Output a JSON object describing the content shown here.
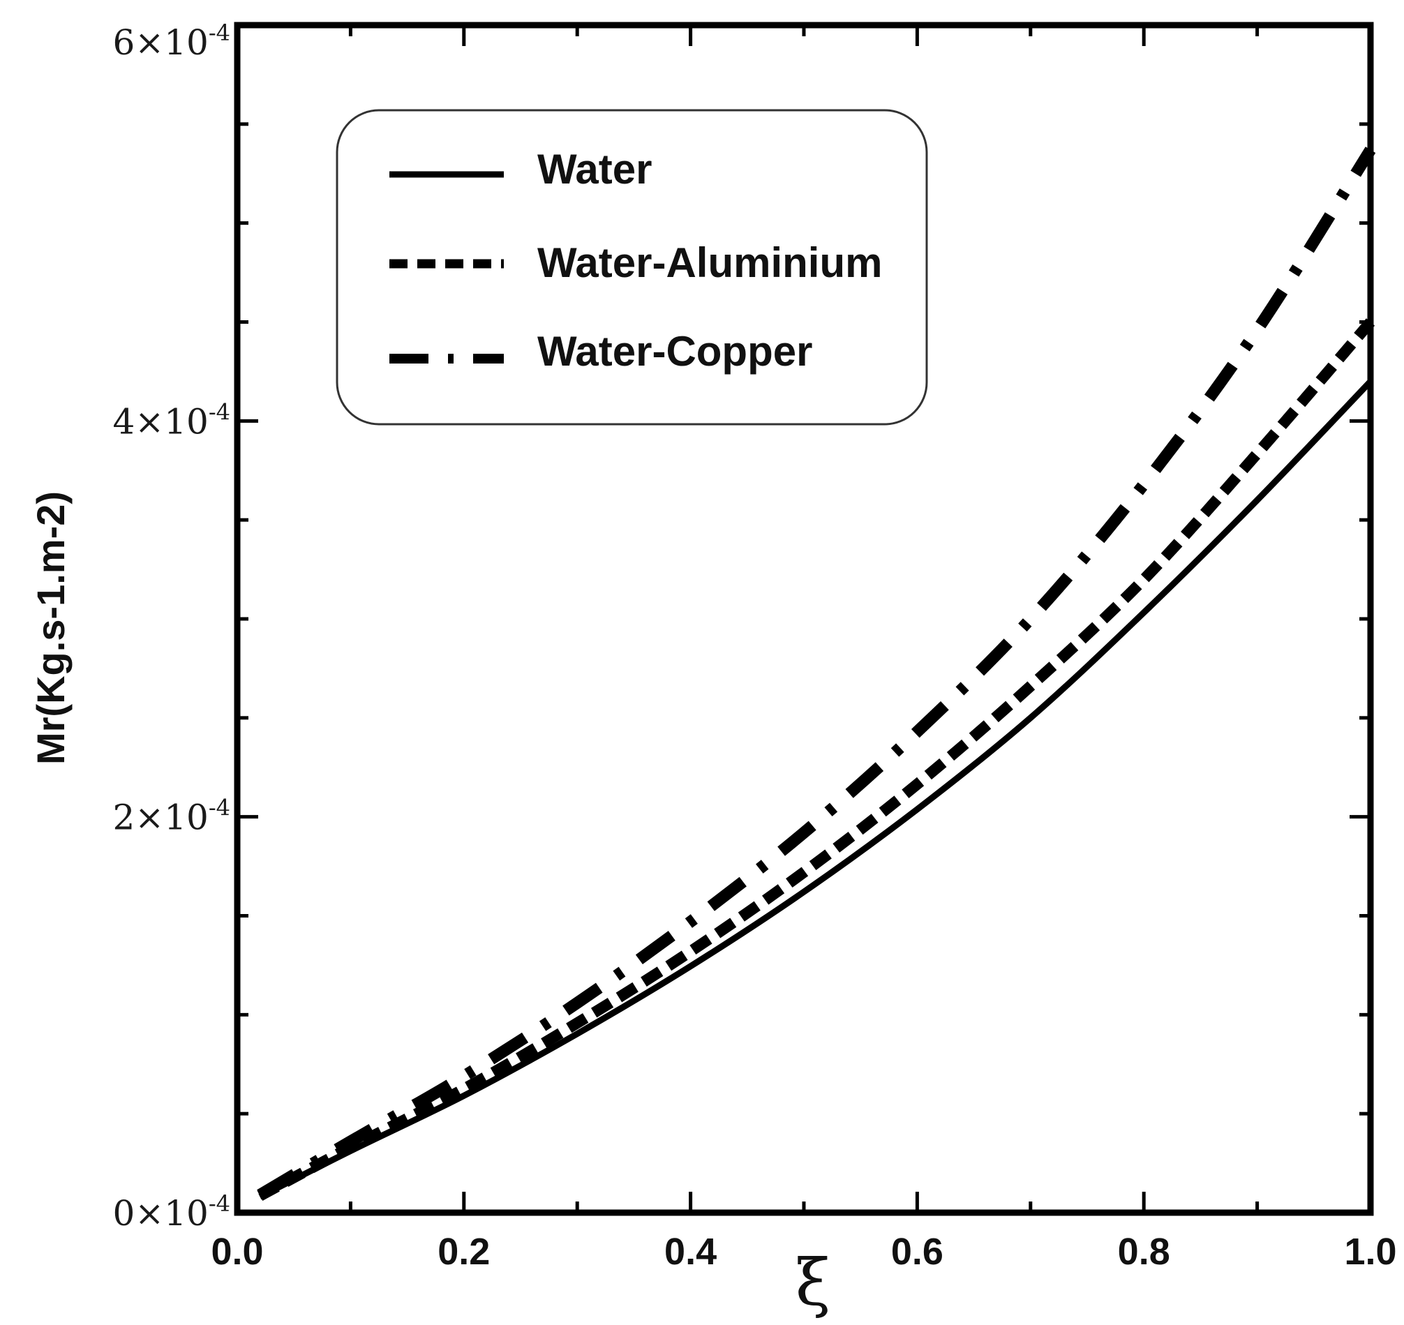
{
  "chart_data": {
    "type": "line",
    "xlabel": "ξ",
    "ylabel": "Mr(Kg.s-1.m-2)",
    "xlim": [
      0.0,
      1.0
    ],
    "ylim": [
      0,
      0.0006
    ],
    "x_ticks": [
      "0.0",
      "0.2",
      "0.4",
      "0.6",
      "0.8",
      "1.0"
    ],
    "y_ticks": [
      {
        "value": 0,
        "mantissa": "0",
        "exponent": "-4"
      },
      {
        "value": 0.0002,
        "mantissa": "2",
        "exponent": "-4"
      },
      {
        "value": 0.0004,
        "mantissa": "4",
        "exponent": "-4"
      },
      {
        "value": 0.0006,
        "mantissa": "6",
        "exponent": "-4"
      }
    ],
    "grid": false,
    "legend_position": "top-left",
    "x": [
      0.02,
      0.1,
      0.2,
      0.3,
      0.4,
      0.5,
      0.6,
      0.7,
      0.8,
      0.9,
      1.0
    ],
    "series": [
      {
        "name": "Water",
        "style": "solid",
        "values": [
          8e-06,
          3.12e-05,
          5.91e-05,
          9.04e-05,
          0.0001245,
          0.0001621,
          0.0002038,
          0.00025,
          0.0003032,
          0.00036,
          0.00042
        ]
      },
      {
        "name": "Water-Aluminium",
        "style": "dashed",
        "values": [
          8.5e-06,
          3.3e-05,
          6.25e-05,
          9.58e-05,
          0.000132,
          0.000172,
          0.0002165,
          0.000266,
          0.00032,
          0.0003835,
          0.00045
        ]
      },
      {
        "name": "Water-Copper",
        "style": "dash-dot",
        "values": [
          9e-06,
          3.6e-05,
          6.9e-05,
          0.000106,
          0.000147,
          0.000192,
          0.000243,
          0.0003,
          0.000368,
          0.000446,
          0.000537
        ]
      }
    ]
  }
}
